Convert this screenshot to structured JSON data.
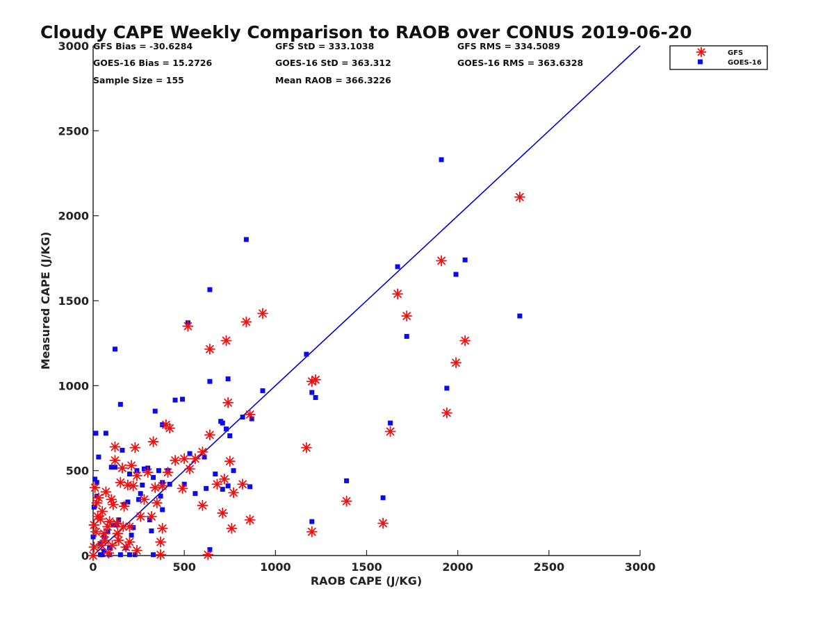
{
  "chart_data": {
    "type": "scatter",
    "title": "Cloudy CAPE Weekly Comparison to RAOB over CONUS 2019-06-20",
    "xlabel": "RAOB CAPE (J/KG)",
    "ylabel": "Measured CAPE (J/KG)",
    "xlim": [
      0,
      3000
    ],
    "ylim": [
      0,
      3000
    ],
    "xticks": [
      0,
      500,
      1000,
      1500,
      2000,
      2500,
      3000
    ],
    "yticks": [
      0,
      500,
      1000,
      1500,
      2000,
      2500,
      3000
    ],
    "grid": false,
    "legend_position": "top-right outside",
    "stats": [
      "GFS Bias = -30.6284",
      "GFS StD = 333.1038",
      "GFS RMS = 334.5089",
      "GOES-16 Bias = 15.2726",
      "GOES-16 StD = 363.312",
      "GOES-16 RMS = 363.6328",
      "Sample Size = 155",
      "Mean RAOB = 366.3226"
    ],
    "reference_line": {
      "x": [
        0,
        3000
      ],
      "y": [
        0,
        3000
      ],
      "color": "#0000cc"
    },
    "series": [
      {
        "name": "GFS",
        "marker": "asterisk",
        "color": "#ee1111",
        "points": [
          [
            2340,
            2110
          ],
          [
            1910,
            1735
          ],
          [
            1670,
            1540
          ],
          [
            1720,
            1410
          ],
          [
            2040,
            1265
          ],
          [
            1990,
            1135
          ],
          [
            1940,
            840
          ],
          [
            1630,
            730
          ],
          [
            1170,
            635
          ],
          [
            1390,
            320
          ],
          [
            1590,
            190
          ],
          [
            1200,
            140
          ],
          [
            1200,
            1025
          ],
          [
            1220,
            1035
          ],
          [
            930,
            1425
          ],
          [
            840,
            1375
          ],
          [
            730,
            1265
          ],
          [
            640,
            1215
          ],
          [
            520,
            1350
          ],
          [
            740,
            900
          ],
          [
            860,
            830
          ],
          [
            640,
            710
          ],
          [
            750,
            555
          ],
          [
            820,
            420
          ],
          [
            720,
            450
          ],
          [
            680,
            420
          ],
          [
            770,
            370
          ],
          [
            710,
            250
          ],
          [
            760,
            160
          ],
          [
            860,
            210
          ],
          [
            600,
            295
          ],
          [
            630,
            5
          ],
          [
            600,
            610
          ],
          [
            560,
            570
          ],
          [
            530,
            510
          ],
          [
            500,
            570
          ],
          [
            490,
            395
          ],
          [
            450,
            560
          ],
          [
            400,
            770
          ],
          [
            420,
            750
          ],
          [
            410,
            490
          ],
          [
            380,
            410
          ],
          [
            380,
            160
          ],
          [
            370,
            5
          ],
          [
            330,
            670
          ],
          [
            340,
            400
          ],
          [
            320,
            230
          ],
          [
            350,
            310
          ],
          [
            370,
            80
          ],
          [
            300,
            490
          ],
          [
            280,
            330
          ],
          [
            260,
            230
          ],
          [
            240,
            470
          ],
          [
            230,
            635
          ],
          [
            220,
            410
          ],
          [
            210,
            530
          ],
          [
            200,
            170
          ],
          [
            200,
            80
          ],
          [
            180,
            50
          ],
          [
            170,
            290
          ],
          [
            160,
            515
          ],
          [
            150,
            430
          ],
          [
            140,
            90
          ],
          [
            130,
            190
          ],
          [
            120,
            640
          ],
          [
            120,
            560
          ],
          [
            110,
            300
          ],
          [
            100,
            330
          ],
          [
            90,
            200
          ],
          [
            80,
            170
          ],
          [
            70,
            375
          ],
          [
            60,
            130
          ],
          [
            50,
            260
          ],
          [
            40,
            215
          ],
          [
            30,
            340
          ],
          [
            20,
            310
          ],
          [
            15,
            140
          ],
          [
            10,
            400
          ],
          [
            5,
            50
          ],
          [
            0,
            0
          ],
          [
            5,
            180
          ],
          [
            25,
            230
          ],
          [
            45,
            60
          ],
          [
            65,
            90
          ],
          [
            85,
            15
          ],
          [
            105,
            60
          ],
          [
            135,
            130
          ],
          [
            165,
            170
          ],
          [
            190,
            415
          ],
          [
            240,
            30
          ]
        ]
      },
      {
        "name": "GOES-16",
        "marker": "square",
        "color": "#0a0aee",
        "points": [
          [
            1910,
            2330
          ],
          [
            2340,
            1410
          ],
          [
            2040,
            1740
          ],
          [
            1990,
            1655
          ],
          [
            1670,
            1700
          ],
          [
            1720,
            1290
          ],
          [
            1940,
            985
          ],
          [
            1630,
            780
          ],
          [
            1590,
            340
          ],
          [
            1390,
            440
          ],
          [
            1170,
            1185
          ],
          [
            1200,
            960
          ],
          [
            1220,
            930
          ],
          [
            1200,
            200
          ],
          [
            840,
            1860
          ],
          [
            640,
            1565
          ],
          [
            520,
            1370
          ],
          [
            640,
            1025
          ],
          [
            740,
            1040
          ],
          [
            930,
            970
          ],
          [
            820,
            815
          ],
          [
            870,
            805
          ],
          [
            710,
            780
          ],
          [
            730,
            745
          ],
          [
            700,
            790
          ],
          [
            750,
            705
          ],
          [
            770,
            500
          ],
          [
            860,
            405
          ],
          [
            740,
            410
          ],
          [
            710,
            390
          ],
          [
            670,
            480
          ],
          [
            610,
            580
          ],
          [
            620,
            395
          ],
          [
            560,
            365
          ],
          [
            530,
            600
          ],
          [
            500,
            420
          ],
          [
            490,
            920
          ],
          [
            450,
            915
          ],
          [
            420,
            420
          ],
          [
            410,
            500
          ],
          [
            380,
            770
          ],
          [
            380,
            430
          ],
          [
            380,
            270
          ],
          [
            370,
            350
          ],
          [
            360,
            500
          ],
          [
            340,
            850
          ],
          [
            330,
            460
          ],
          [
            320,
            145
          ],
          [
            310,
            210
          ],
          [
            300,
            515
          ],
          [
            280,
            510
          ],
          [
            270,
            415
          ],
          [
            260,
            365
          ],
          [
            250,
            330
          ],
          [
            240,
            500
          ],
          [
            230,
            5
          ],
          [
            220,
            165
          ],
          [
            210,
            120
          ],
          [
            200,
            480
          ],
          [
            190,
            315
          ],
          [
            180,
            45
          ],
          [
            170,
            300
          ],
          [
            160,
            620
          ],
          [
            150,
            890
          ],
          [
            140,
            210
          ],
          [
            130,
            180
          ],
          [
            120,
            1215
          ],
          [
            120,
            520
          ],
          [
            110,
            180
          ],
          [
            100,
            520
          ],
          [
            90,
            45
          ],
          [
            80,
            140
          ],
          [
            70,
            720
          ],
          [
            60,
            110
          ],
          [
            50,
            5
          ],
          [
            40,
            70
          ],
          [
            30,
            580
          ],
          [
            20,
            430
          ],
          [
            15,
            720
          ],
          [
            10,
            450
          ],
          [
            5,
            285
          ],
          [
            0,
            110
          ],
          [
            20,
            350
          ],
          [
            40,
            5
          ],
          [
            60,
            25
          ],
          [
            90,
            5
          ],
          [
            150,
            5
          ],
          [
            200,
            5
          ],
          [
            330,
            5
          ],
          [
            640,
            35
          ]
        ]
      }
    ]
  }
}
